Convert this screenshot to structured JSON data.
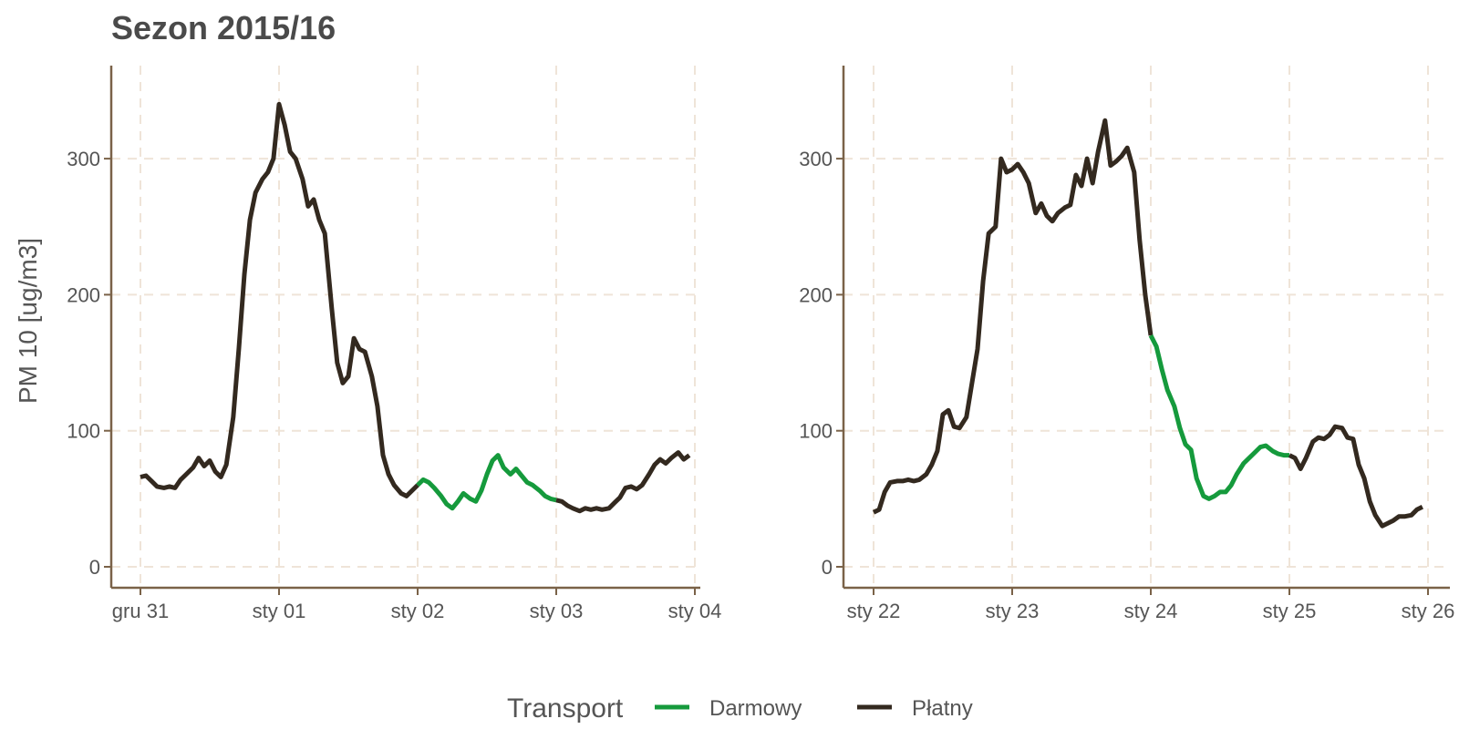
{
  "title": "Sezon 2015/16",
  "chart_data": [
    {
      "type": "line",
      "panel": "left",
      "ylabel": "PM 10 [ug/m3]",
      "ylim": [
        -17,
        368
      ],
      "y_ticks": [
        0,
        100,
        200,
        300
      ],
      "x_ticks": [
        0,
        1,
        2,
        3,
        4
      ],
      "x_tick_labels": [
        "gru 31",
        "sty 01",
        "sty 02",
        "sty 03",
        "sty 04"
      ],
      "xlim": [
        -0.2,
        4.15
      ],
      "grid": true,
      "series": [
        {
          "name": "Płatny",
          "x": [
            0,
            0.04,
            0.08,
            0.12,
            0.17,
            0.21,
            0.25,
            0.29,
            0.33,
            0.38,
            0.42,
            0.46,
            0.5,
            0.54,
            0.58,
            0.62,
            0.67,
            0.71,
            0.75,
            0.79,
            0.83,
            0.88,
            0.92,
            0.96,
            1.0,
            1.04,
            1.08,
            1.12,
            1.17,
            1.21,
            1.25,
            1.29,
            1.33,
            1.38,
            1.42,
            1.46,
            1.5,
            1.54,
            1.58,
            1.62,
            1.67,
            1.71,
            1.75,
            1.79,
            1.83,
            1.88,
            1.92,
            1.96,
            2.0
          ],
          "y": [
            66,
            67,
            63,
            59,
            58,
            59,
            58,
            64,
            68,
            73,
            80,
            74,
            78,
            70,
            66,
            75,
            110,
            160,
            215,
            255,
            275,
            285,
            290,
            300,
            340,
            325,
            305,
            300,
            285,
            265,
            270,
            255,
            245,
            190,
            150,
            135,
            140,
            168,
            160,
            158,
            140,
            118,
            82,
            68,
            60,
            54,
            52,
            56,
            60
          ]
        },
        {
          "name": "Darmowy",
          "x": [
            2.0,
            2.04,
            2.08,
            2.12,
            2.17,
            2.21,
            2.25,
            2.29,
            2.33,
            2.38,
            2.42,
            2.46,
            2.5,
            2.54,
            2.58,
            2.62,
            2.67,
            2.71,
            2.75,
            2.79,
            2.83,
            2.88,
            2.92,
            2.96,
            3.0
          ],
          "y": [
            60,
            64,
            62,
            58,
            52,
            46,
            43,
            48,
            54,
            50,
            48,
            56,
            68,
            78,
            82,
            73,
            68,
            72,
            67,
            62,
            60,
            56,
            52,
            50,
            49
          ]
        },
        {
          "name": "Płatny",
          "x": [
            3.0,
            3.04,
            3.08,
            3.12,
            3.17,
            3.21,
            3.25,
            3.29,
            3.33,
            3.38,
            3.42,
            3.46,
            3.5,
            3.54,
            3.58,
            3.62,
            3.67,
            3.71,
            3.75,
            3.79,
            3.83,
            3.88,
            3.92,
            3.96
          ],
          "y": [
            49,
            48,
            45,
            43,
            41,
            43,
            42,
            43,
            42,
            43,
            47,
            51,
            58,
            59,
            57,
            60,
            68,
            75,
            79,
            76,
            80,
            84,
            79,
            82
          ]
        }
      ]
    },
    {
      "type": "line",
      "panel": "right",
      "ylim": [
        -17,
        368
      ],
      "y_ticks": [
        0,
        100,
        200,
        300
      ],
      "x_ticks": [
        0,
        1,
        2,
        3,
        4
      ],
      "x_tick_labels": [
        "sty 22",
        "sty 23",
        "sty 24",
        "sty 25",
        "sty 26"
      ],
      "xlim": [
        -0.2,
        4.15
      ],
      "grid": true,
      "series": [
        {
          "name": "Płatny",
          "x": [
            0,
            0.04,
            0.08,
            0.12,
            0.17,
            0.21,
            0.25,
            0.29,
            0.33,
            0.38,
            0.42,
            0.46,
            0.5,
            0.54,
            0.58,
            0.62,
            0.67,
            0.71,
            0.75,
            0.79,
            0.83,
            0.88,
            0.92,
            0.96,
            1.0,
            1.04,
            1.08,
            1.12,
            1.17,
            1.21,
            1.25,
            1.29,
            1.33,
            1.38,
            1.42,
            1.46,
            1.5,
            1.54,
            1.58,
            1.62,
            1.67,
            1.71,
            1.75,
            1.79,
            1.83,
            1.88,
            1.92,
            1.96,
            2.0
          ],
          "y": [
            40,
            42,
            55,
            62,
            63,
            63,
            64,
            63,
            64,
            68,
            75,
            85,
            112,
            115,
            103,
            102,
            110,
            135,
            160,
            210,
            245,
            250,
            300,
            290,
            292,
            296,
            290,
            282,
            260,
            267,
            258,
            254,
            260,
            264,
            266,
            288,
            280,
            300,
            282,
            305,
            328,
            295,
            298,
            302,
            308,
            290,
            240,
            200,
            170
          ]
        },
        {
          "name": "Darmowy",
          "x": [
            2.0,
            2.04,
            2.08,
            2.12,
            2.17,
            2.21,
            2.25,
            2.29,
            2.33,
            2.38,
            2.42,
            2.46,
            2.5,
            2.54,
            2.58,
            2.62,
            2.67,
            2.71,
            2.75,
            2.79,
            2.83,
            2.88,
            2.92,
            2.96,
            3.0
          ],
          "y": [
            170,
            162,
            145,
            130,
            118,
            102,
            90,
            86,
            65,
            52,
            50,
            52,
            55,
            55,
            60,
            68,
            76,
            80,
            84,
            88,
            89,
            85,
            83,
            82,
            82
          ]
        },
        {
          "name": "Płatny",
          "x": [
            3.0,
            3.04,
            3.08,
            3.12,
            3.17,
            3.21,
            3.25,
            3.29,
            3.33,
            3.38,
            3.42,
            3.46,
            3.5,
            3.54,
            3.58,
            3.62,
            3.67,
            3.71,
            3.75,
            3.79,
            3.83,
            3.88,
            3.92,
            3.96
          ],
          "y": [
            82,
            80,
            72,
            80,
            92,
            95,
            94,
            97,
            103,
            102,
            95,
            94,
            75,
            65,
            48,
            38,
            30,
            32,
            34,
            37,
            37,
            38,
            42,
            44
          ]
        }
      ]
    }
  ],
  "legend": {
    "title": "Transport",
    "items": [
      {
        "label": "Darmowy",
        "color": "#159A3C"
      },
      {
        "label": "Płatny",
        "color": "#33291F"
      }
    ]
  },
  "colors": {
    "Darmowy": "#159A3C",
    "Płatny": "#33291F",
    "axis": "#7A6248",
    "grid": "#EFE4D8"
  }
}
